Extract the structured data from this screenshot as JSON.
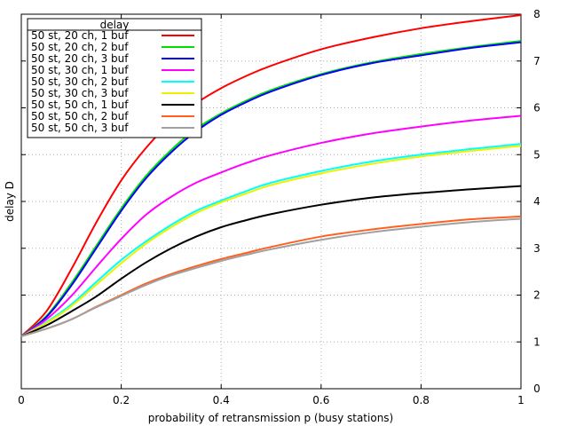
{
  "chart_data": {
    "type": "line",
    "title": "",
    "xlabel": "probability of retransmission p (busy stations)",
    "ylabel": "delay D",
    "xlim": [
      0,
      1
    ],
    "ylim": [
      0,
      8
    ],
    "xticks": [
      "0",
      "0.2",
      "0.4",
      "0.6",
      "0.8",
      "1"
    ],
    "yticks": [
      "0",
      "1",
      "2",
      "3",
      "4",
      "5",
      "6",
      "7",
      "8"
    ],
    "grid": true,
    "legend": {
      "title": "delay",
      "placement": "top-left"
    },
    "x": [
      0,
      0.05,
      0.1,
      0.15,
      0.2,
      0.25,
      0.3,
      0.35,
      0.4,
      0.45,
      0.5,
      0.6,
      0.7,
      0.8,
      0.9,
      1.0
    ],
    "series": [
      {
        "name": "50 st, 20 ch, 1 buf",
        "color": "#ff0000",
        "values": [
          1.12,
          1.65,
          2.55,
          3.55,
          4.45,
          5.15,
          5.7,
          6.1,
          6.42,
          6.68,
          6.9,
          7.25,
          7.5,
          7.7,
          7.85,
          7.98
        ]
      },
      {
        "name": "50 st, 20 ch, 2 buf",
        "color": "#00e000",
        "values": [
          1.12,
          1.55,
          2.25,
          3.05,
          3.85,
          4.55,
          5.1,
          5.55,
          5.88,
          6.15,
          6.38,
          6.72,
          6.97,
          7.15,
          7.3,
          7.43
        ]
      },
      {
        "name": "50 st, 20 ch, 3 buf",
        "color": "#0000ff",
        "values": [
          1.12,
          1.53,
          2.2,
          3.0,
          3.8,
          4.5,
          5.05,
          5.5,
          5.85,
          6.12,
          6.35,
          6.7,
          6.95,
          7.12,
          7.28,
          7.4
        ]
      },
      {
        "name": "50 st, 30 ch, 1 buf",
        "color": "#ff00ff",
        "values": [
          1.12,
          1.48,
          1.98,
          2.6,
          3.2,
          3.72,
          4.1,
          4.4,
          4.62,
          4.82,
          4.99,
          5.25,
          5.45,
          5.6,
          5.73,
          5.83
        ]
      },
      {
        "name": "50 st, 30 ch, 2 buf",
        "color": "#00ffff",
        "values": [
          1.12,
          1.42,
          1.8,
          2.28,
          2.75,
          3.15,
          3.5,
          3.8,
          4.02,
          4.22,
          4.4,
          4.65,
          4.85,
          5.0,
          5.12,
          5.23
        ]
      },
      {
        "name": "50 st, 30 ch, 3 buf",
        "color": "#f0f000",
        "values": [
          1.12,
          1.4,
          1.76,
          2.22,
          2.68,
          3.1,
          3.45,
          3.75,
          3.98,
          4.17,
          4.35,
          4.6,
          4.8,
          4.96,
          5.08,
          5.19
        ]
      },
      {
        "name": "50 st, 50 ch, 1 buf",
        "color": "#000000",
        "values": [
          1.12,
          1.35,
          1.65,
          1.97,
          2.35,
          2.7,
          3.0,
          3.25,
          3.45,
          3.6,
          3.73,
          3.93,
          4.08,
          4.18,
          4.26,
          4.33
        ]
      },
      {
        "name": "50 st, 50 ch, 2 buf",
        "color": "#ff6020",
        "values": [
          1.12,
          1.28,
          1.48,
          1.75,
          2.0,
          2.25,
          2.45,
          2.62,
          2.77,
          2.9,
          3.03,
          3.25,
          3.4,
          3.52,
          3.62,
          3.68
        ]
      },
      {
        "name": "50 st, 50 ch, 3 buf",
        "color": "#a0a0a0",
        "values": [
          1.12,
          1.28,
          1.48,
          1.74,
          1.98,
          2.22,
          2.42,
          2.58,
          2.73,
          2.86,
          2.98,
          3.18,
          3.34,
          3.46,
          3.56,
          3.63
        ]
      }
    ]
  }
}
